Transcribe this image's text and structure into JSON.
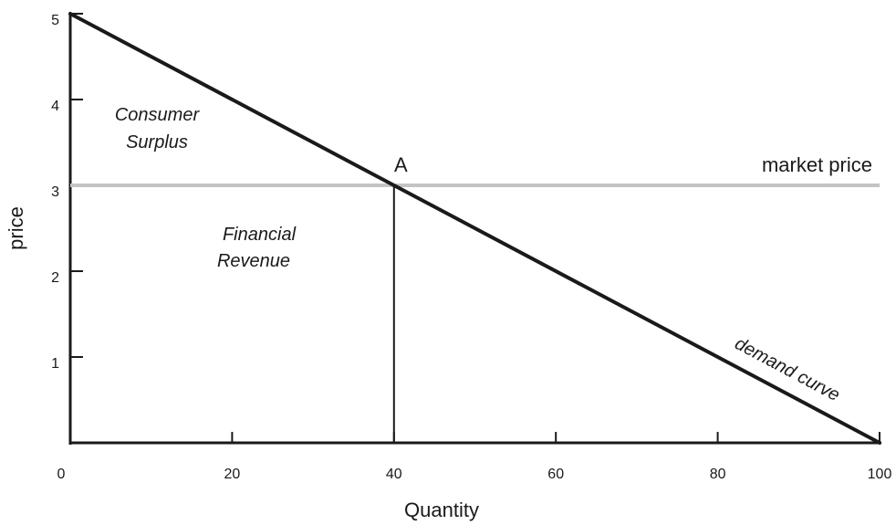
{
  "chart_data": {
    "type": "line",
    "title": "",
    "xlabel": "Quantity",
    "ylabel": "price",
    "xlim": [
      0,
      100
    ],
    "ylim": [
      0,
      5
    ],
    "x_ticks": [
      0,
      20,
      40,
      60,
      80,
      100
    ],
    "y_ticks": [
      1,
      2,
      3,
      4,
      5
    ],
    "grid": false,
    "series": [
      {
        "name": "demand curve",
        "x": [
          0,
          100
        ],
        "y": [
          5,
          0
        ],
        "color": "#1a1a1a"
      },
      {
        "name": "market price",
        "x": [
          0,
          100
        ],
        "y": [
          3,
          3
        ],
        "color": "#c4c4c4"
      }
    ],
    "point_A": {
      "label": "A",
      "x": 40,
      "y": 3
    },
    "annotations": {
      "consumer_surplus": [
        "Consumer",
        "Surplus"
      ],
      "financial_revenue": [
        "Financial",
        "Revenue"
      ]
    }
  }
}
